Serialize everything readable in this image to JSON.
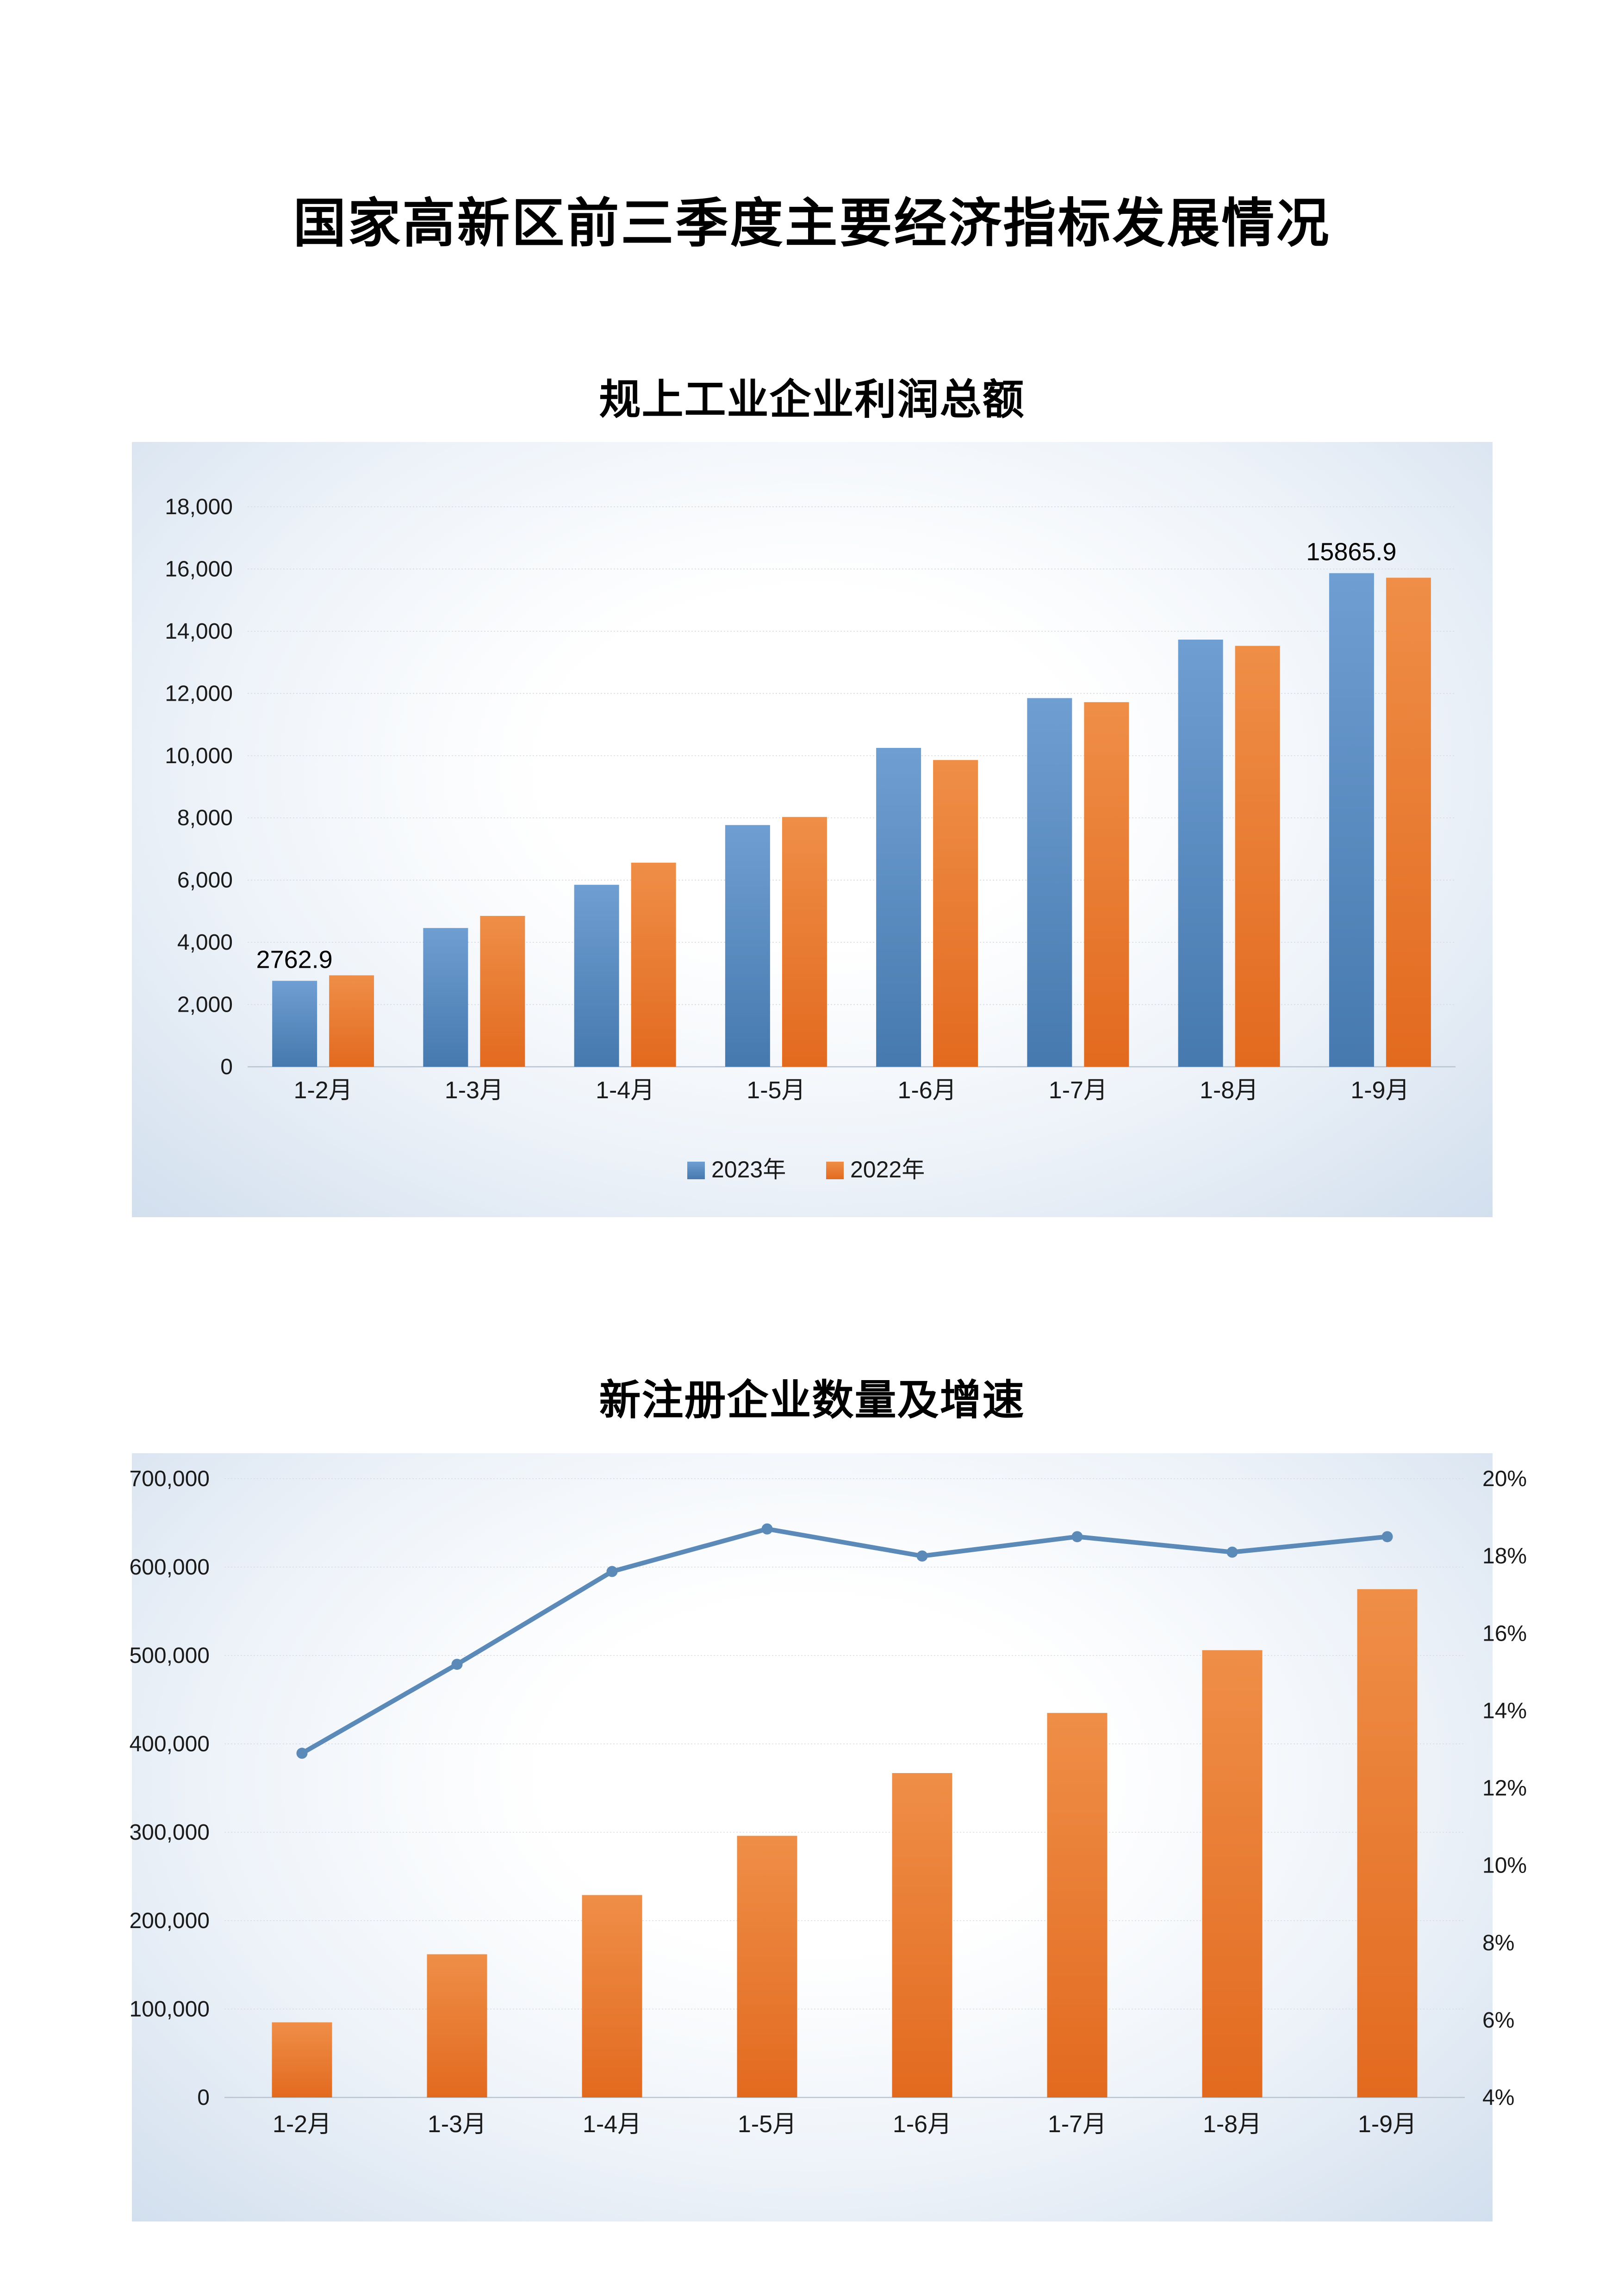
{
  "page": {
    "title": "国家高新区前三季度主要经济指标发展情况"
  },
  "chart_data": [
    {
      "type": "bar",
      "title": "规上工业企业利润总额",
      "categories": [
        "1-2月",
        "1-3月",
        "1-4月",
        "1-5月",
        "1-6月",
        "1-7月",
        "1-8月",
        "1-9月"
      ],
      "series": [
        {
          "name": "2023年",
          "color_top": "#6f9ed2",
          "color_bottom": "#4679ae",
          "values": [
            2762.9,
            4460,
            5850,
            7770,
            10250,
            11850,
            13730,
            15865.9
          ]
        },
        {
          "name": "2022年",
          "color_top": "#ef8e47",
          "color_bottom": "#e26a1f",
          "values": [
            2940,
            4850,
            6560,
            8030,
            9860,
            11720,
            13530,
            15720
          ]
        }
      ],
      "ylim": [
        0,
        18000
      ],
      "ytick_step": 2000,
      "y_tick_labels": [
        "0",
        "2,000",
        "4,000",
        "6,000",
        "8,000",
        "10,000",
        "12,000",
        "14,000",
        "16,000",
        "18,000"
      ],
      "data_labels": [
        {
          "series_index": 0,
          "category_index": 0,
          "text": "2762.9"
        },
        {
          "series_index": 0,
          "category_index": 7,
          "text": "15865.9"
        }
      ],
      "grid": true,
      "legend_position": "bottom",
      "legend": [
        "2023年",
        "2022年"
      ]
    },
    {
      "type": "combo bar+line",
      "title": "新注册企业数量及增速",
      "categories": [
        "1-2月",
        "1-3月",
        "1-4月",
        "1-5月",
        "1-6月",
        "1-7月",
        "1-8月",
        "1-9月"
      ],
      "bar_series": {
        "color_top": "#ef8e47",
        "color_bottom": "#e26a1f",
        "values": [
          85000,
          162000,
          229000,
          296000,
          367000,
          435000,
          506000,
          575000
        ]
      },
      "line_series": {
        "color": "#5b8ab8",
        "values_percent": [
          12.9,
          15.2,
          17.6,
          18.7,
          18.0,
          18.5,
          18.1,
          18.5
        ]
      },
      "left_axis": {
        "min": 0,
        "max": 700000,
        "step": 100000,
        "tick_labels": [
          "0",
          "100,000",
          "200,000",
          "300,000",
          "400,000",
          "500,000",
          "600,000",
          "700,000"
        ]
      },
      "right_axis": {
        "min": 4,
        "max": 20,
        "step": 2,
        "tick_labels": [
          "4%",
          "6%",
          "8%",
          "10%",
          "12%",
          "14%",
          "16%",
          "18%",
          "20%"
        ]
      },
      "grid": true,
      "legend_position": "none"
    }
  ]
}
